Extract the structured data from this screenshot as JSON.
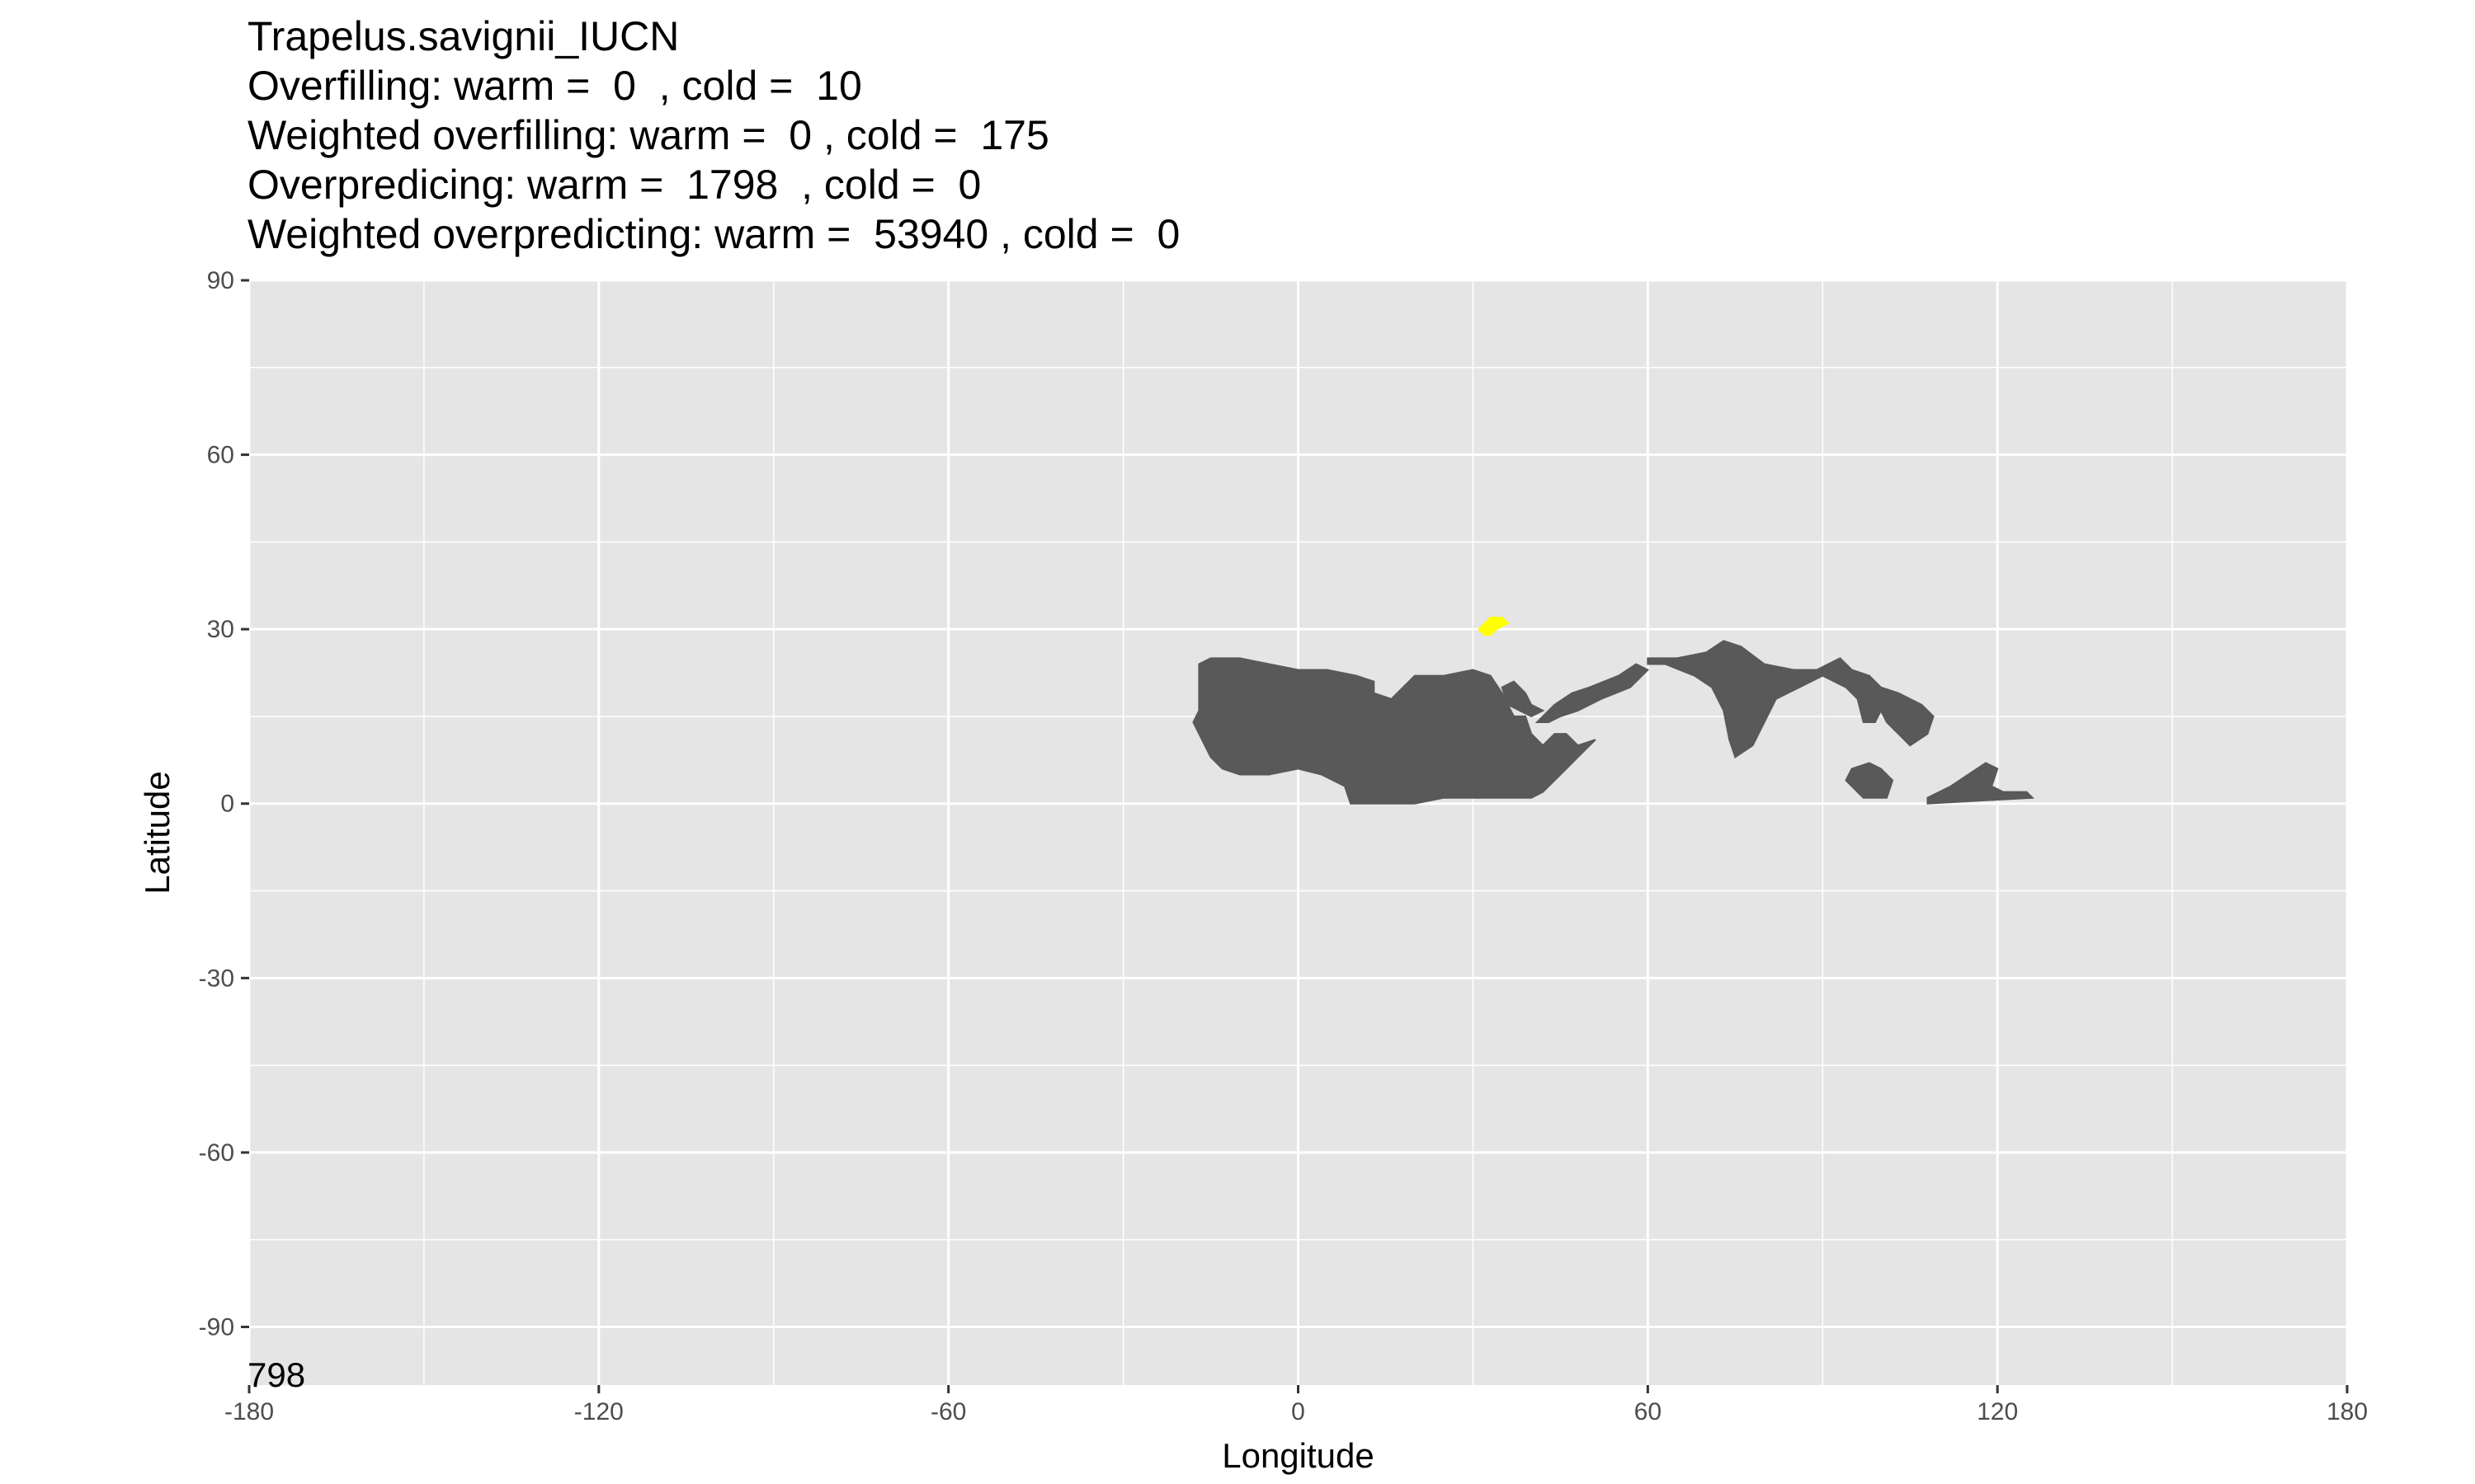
{
  "chart_data": {
    "type": "heatmap",
    "title": "Trapelus.savignii_IUCN",
    "subtitle_lines": [
      "Overfilling: warm =  0  , cold =  10",
      "Weighted overfilling: warm =  0 , cold =  175",
      "Overpredicing: warm =  1798  , cold =  0",
      "Weighted overpredicting: warm =  53940 , cold =  0"
    ],
    "xlabel": "Longitude",
    "ylabel": "Latitude",
    "xlim": [
      -180,
      180
    ],
    "ylim": [
      -100,
      90
    ],
    "x_ticks": [
      -180,
      -120,
      -60,
      0,
      60,
      120,
      180
    ],
    "y_ticks": [
      -90,
      -60,
      -30,
      0,
      30,
      60,
      90
    ],
    "corner_label": "798",
    "colors": {
      "panel": "#e5e5e5",
      "grid": "#ffffff",
      "overpredicted": "#595959",
      "overfilled": "#ffff00"
    },
    "series": [
      {
        "name": "overpredicted range",
        "color": "#595959",
        "polygons": [
          [
            [
              -17,
              24
            ],
            [
              -15,
              25
            ],
            [
              -10,
              25
            ],
            [
              -5,
              24
            ],
            [
              0,
              23
            ],
            [
              5,
              23
            ],
            [
              10,
              22
            ],
            [
              13,
              21
            ],
            [
              13,
              19
            ],
            [
              16,
              18
            ],
            [
              18,
              20
            ],
            [
              20,
              22
            ],
            [
              25,
              22
            ],
            [
              30,
              23
            ],
            [
              33,
              22
            ],
            [
              35,
              19
            ],
            [
              37,
              15
            ],
            [
              39,
              15
            ],
            [
              40,
              12
            ],
            [
              42,
              10
            ],
            [
              44,
              12
            ],
            [
              46,
              12
            ],
            [
              48,
              10
            ],
            [
              51,
              11
            ],
            [
              48,
              8
            ],
            [
              45,
              5
            ],
            [
              42,
              2
            ],
            [
              40,
              1
            ],
            [
              35,
              1
            ],
            [
              30,
              1
            ],
            [
              25,
              1
            ],
            [
              20,
              0
            ],
            [
              15,
              0
            ],
            [
              9,
              0
            ],
            [
              8,
              3
            ],
            [
              4,
              5
            ],
            [
              0,
              6
            ],
            [
              -5,
              5
            ],
            [
              -10,
              5
            ],
            [
              -13,
              6
            ],
            [
              -15,
              8
            ],
            [
              -17,
              12
            ],
            [
              -18,
              14
            ],
            [
              -17,
              16
            ],
            [
              -17,
              20
            ]
          ],
          [
            [
              35,
              20
            ],
            [
              37,
              21
            ],
            [
              39,
              19
            ],
            [
              40,
              17
            ],
            [
              42,
              16
            ],
            [
              40,
              15
            ],
            [
              38,
              16
            ],
            [
              36,
              17
            ]
          ],
          [
            [
              41,
              14
            ],
            [
              44,
              17
            ],
            [
              47,
              19
            ],
            [
              50,
              20
            ],
            [
              55,
              22
            ],
            [
              58,
              24
            ],
            [
              60,
              23
            ],
            [
              57,
              20
            ],
            [
              52,
              18
            ],
            [
              48,
              16
            ],
            [
              45,
              15
            ],
            [
              43,
              14
            ]
          ],
          [
            [
              60,
              25
            ],
            [
              65,
              25
            ],
            [
              70,
              26
            ],
            [
              73,
              28
            ],
            [
              76,
              27
            ],
            [
              80,
              24
            ],
            [
              85,
              23
            ],
            [
              89,
              23
            ],
            [
              93,
              25
            ],
            [
              95,
              23
            ],
            [
              98,
              22
            ],
            [
              100,
              20
            ],
            [
              103,
              19
            ],
            [
              107,
              17
            ],
            [
              109,
              15
            ],
            [
              108,
              12
            ],
            [
              105,
              10
            ],
            [
              103,
              12
            ],
            [
              101,
              14
            ],
            [
              100,
              16
            ],
            [
              99,
              14
            ],
            [
              97,
              14
            ],
            [
              96,
              18
            ],
            [
              94,
              20
            ],
            [
              90,
              22
            ],
            [
              86,
              20
            ],
            [
              82,
              18
            ],
            [
              80,
              14
            ],
            [
              78,
              10
            ],
            [
              75,
              8
            ],
            [
              74,
              11
            ],
            [
              73,
              16
            ],
            [
              71,
              20
            ],
            [
              68,
              22
            ],
            [
              63,
              24
            ],
            [
              60,
              24
            ]
          ],
          [
            [
              95,
              6
            ],
            [
              98,
              7
            ],
            [
              100,
              6
            ],
            [
              102,
              4
            ],
            [
              101,
              1
            ],
            [
              97,
              1
            ],
            [
              94,
              4
            ]
          ],
          [
            [
              108,
              1
            ],
            [
              112,
              3
            ],
            [
              115,
              5
            ],
            [
              118,
              7
            ],
            [
              120,
              6
            ],
            [
              119,
              3
            ],
            [
              121,
              2
            ],
            [
              125,
              2
            ],
            [
              126,
              1
            ],
            [
              108,
              0
            ]
          ]
        ]
      },
      {
        "name": "overfilled range",
        "color": "#ffff00",
        "polygons": [
          [
            [
              31,
              30
            ],
            [
              33,
              32
            ],
            [
              35,
              32
            ],
            [
              36,
              31
            ],
            [
              34,
              30
            ],
            [
              33,
              29
            ],
            [
              32,
              29
            ]
          ]
        ]
      }
    ]
  }
}
